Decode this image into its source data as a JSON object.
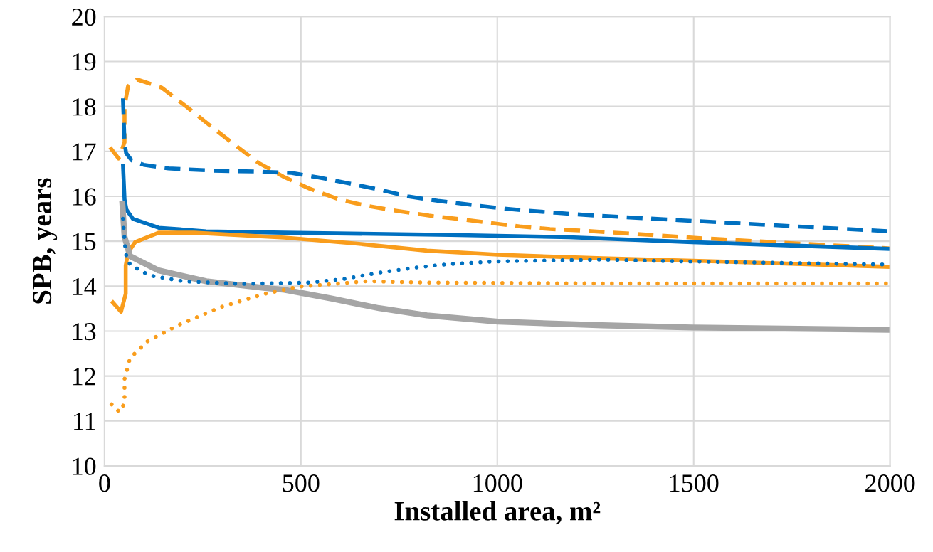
{
  "chart_data": {
    "type": "line",
    "xlabel": "Installed area, m²",
    "ylabel": "SPB, years",
    "xlim": [
      0,
      2000
    ],
    "xticks": [
      0,
      500,
      1000,
      1500,
      2000
    ],
    "ylim": [
      10,
      20
    ],
    "yticks": [
      10,
      11,
      12,
      13,
      14,
      15,
      16,
      17,
      18,
      19,
      20
    ],
    "grid": true,
    "marker": "none",
    "series": [
      {
        "color": "#f99d1c",
        "line_style": "dashed",
        "x": [
          14,
          36,
          51,
          51,
          60,
          83,
          145,
          208,
          265,
          328,
          391,
          455,
          522,
          598,
          672,
          748,
          826,
          905,
          980,
          1056,
          1134,
          1210,
          1515,
          1786,
          2000
        ],
        "values": [
          17.09,
          16.84,
          17.2,
          18.0,
          18.45,
          18.6,
          18.42,
          18.0,
          17.6,
          17.17,
          16.75,
          16.44,
          16.17,
          15.93,
          15.78,
          15.67,
          15.57,
          15.49,
          15.41,
          15.33,
          15.27,
          15.24,
          15.07,
          14.94,
          14.84
        ]
      },
      {
        "color": "#0070c0",
        "line_style": "dashed",
        "x": [
          47,
          51,
          55,
          69,
          100,
          163,
          277,
          391,
          476,
          546,
          621,
          694,
          772,
          848,
          924,
          1002,
          1078,
          1153,
          1232,
          1460,
          1696,
          2000
        ],
        "values": [
          18.18,
          17.2,
          16.96,
          16.8,
          16.7,
          16.62,
          16.57,
          16.55,
          16.52,
          16.42,
          16.29,
          16.16,
          16.0,
          15.9,
          15.82,
          15.74,
          15.68,
          15.63,
          15.58,
          15.47,
          15.36,
          15.22
        ]
      },
      {
        "color": "#0070c0",
        "line_style": "solid",
        "x": [
          47,
          51,
          56,
          72,
          138,
          259,
          458,
          880,
          1183,
          1496,
          2000
        ],
        "values": [
          16.72,
          15.93,
          15.7,
          15.5,
          15.3,
          15.22,
          15.19,
          15.14,
          15.09,
          14.98,
          14.83
        ]
      },
      {
        "color": "#f99d1c",
        "line_style": "solid",
        "x": [
          18,
          42,
          54,
          54,
          60,
          78,
          138,
          228,
          458,
          639,
          821,
          1002,
          1268,
          1605,
          2000
        ],
        "values": [
          13.67,
          13.43,
          13.83,
          14.46,
          14.75,
          14.98,
          15.19,
          15.19,
          15.08,
          14.95,
          14.79,
          14.7,
          14.62,
          14.54,
          14.43
        ]
      },
      {
        "color": "#a5a5a5",
        "line_style": "solid",
        "x": [
          45,
          51,
          65,
          138,
          259,
          409,
          458,
          580,
          699,
          821,
          1002,
          1268,
          1496,
          2000
        ],
        "values": [
          15.9,
          15.1,
          14.67,
          14.35,
          14.11,
          13.96,
          13.92,
          13.72,
          13.51,
          13.35,
          13.21,
          13.13,
          13.08,
          13.03
        ]
      },
      {
        "color": "#0070c0",
        "line_style": "dotted",
        "x": [
          47,
          54,
          65,
          114,
          199,
          350,
          525,
          609,
          699,
          788,
          875,
          993,
          1255,
          1485,
          2000
        ],
        "values": [
          15.5,
          14.72,
          14.48,
          14.24,
          14.11,
          14.05,
          14.08,
          14.16,
          14.3,
          14.41,
          14.49,
          14.55,
          14.59,
          14.55,
          14.48
        ]
      },
      {
        "color": "#f99d1c",
        "line_style": "dotted",
        "x": [
          18,
          38,
          51,
          51,
          65,
          109,
          187,
          295,
          408,
          495,
          670,
          821,
          1255,
          2000
        ],
        "values": [
          11.37,
          11.2,
          11.39,
          11.93,
          12.4,
          12.77,
          13.13,
          13.53,
          13.83,
          13.99,
          14.11,
          14.08,
          14.06,
          14.06
        ]
      }
    ]
  }
}
